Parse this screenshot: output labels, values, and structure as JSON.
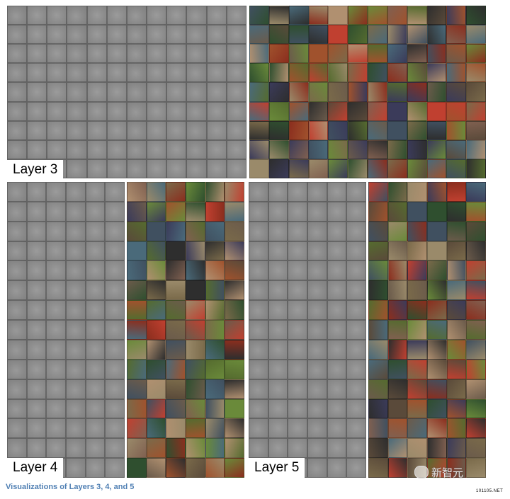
{
  "labels": {
    "layer3": "Layer 3",
    "layer4": "Layer 4",
    "layer5": "Layer 5"
  },
  "caption": "Visualizations of Layers 3, 4, and 5",
  "watermark": {
    "icon": "wechat-icon",
    "text": "新智元",
    "small": "101105.NET"
  },
  "colors": {
    "caption": "#4f7fb3",
    "filter_gray": "#8d8d8d"
  }
}
